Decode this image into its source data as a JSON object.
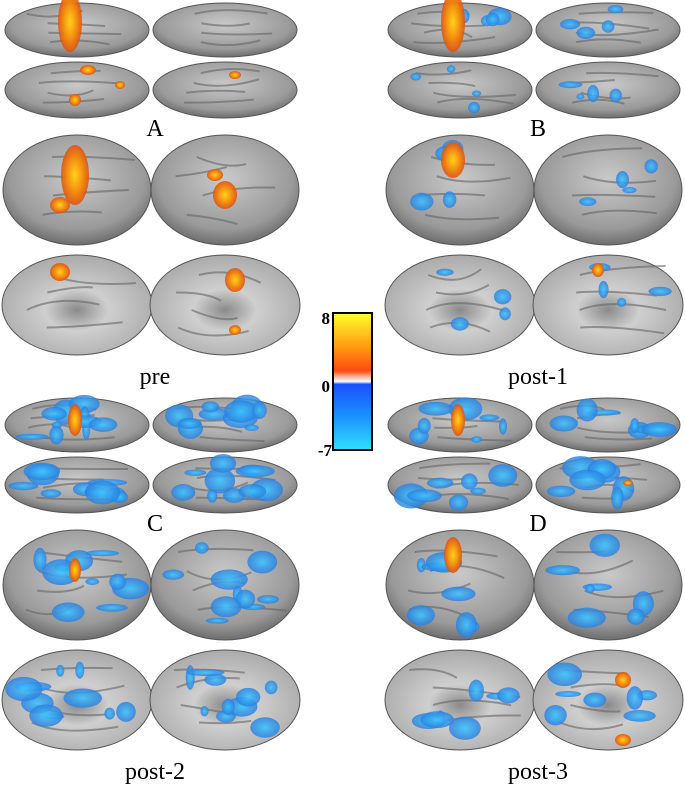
{
  "panels": [
    {
      "letter": "A",
      "condition": "pre"
    },
    {
      "letter": "B",
      "condition": "post-1"
    },
    {
      "letter": "C",
      "condition": "post-2"
    },
    {
      "letter": "D",
      "condition": "post-3"
    }
  ],
  "colorbar": {
    "ticks": [
      "8",
      "0",
      "-7"
    ]
  }
}
